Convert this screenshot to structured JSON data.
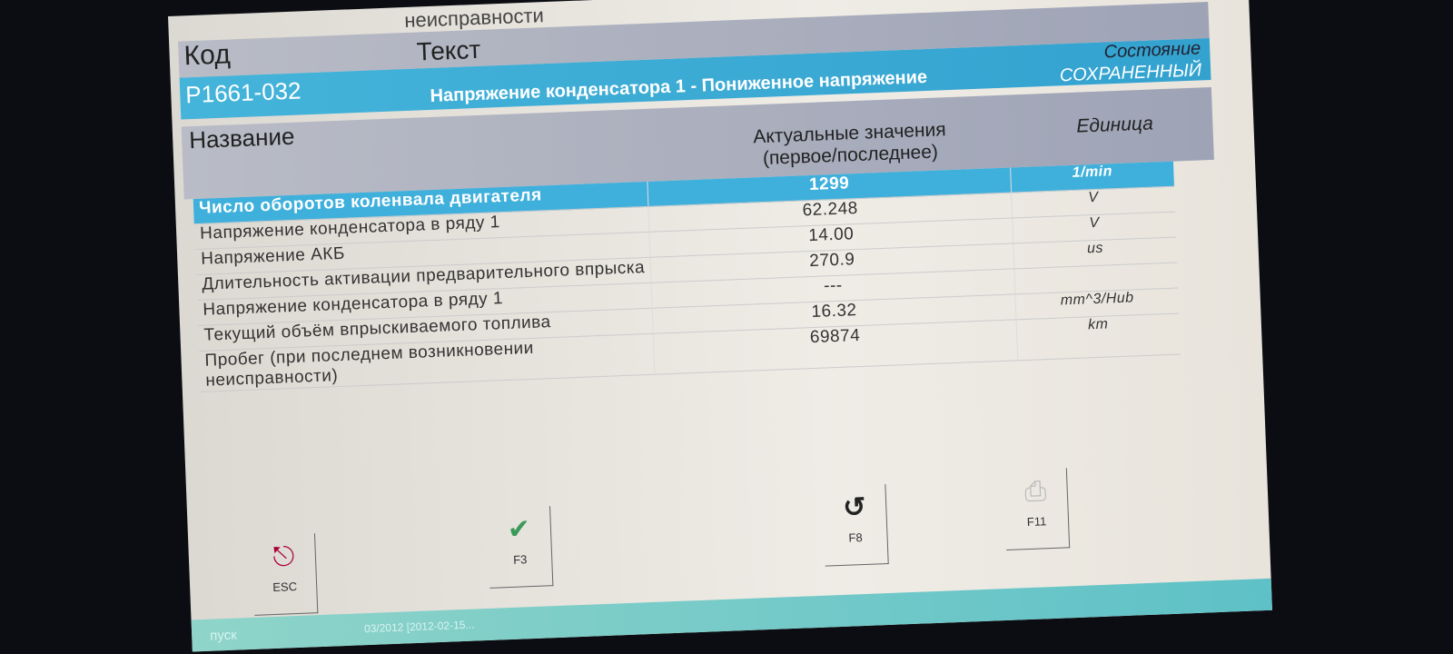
{
  "window_title": "неисправности",
  "header": {
    "code_label": "Код",
    "text_label": "Текст"
  },
  "fault": {
    "code": "P1661-032",
    "text": "Напряжение конденсатора 1 - Пониженное напряжение",
    "status_label": "Состояние",
    "status_value": "СОХРАНЕННЫЙ"
  },
  "table": {
    "columns": [
      "Название",
      "Актуальные значения (первое/последнее)",
      "Единица"
    ],
    "rows": [
      {
        "name": "Число оборотов коленвала двигателя",
        "value": "1299",
        "unit": "1/min"
      },
      {
        "name": "Напряжение конденсатора в ряду 1",
        "value": "62.248",
        "unit": "V"
      },
      {
        "name": "Напряжение АКБ",
        "value": "14.00",
        "unit": "V"
      },
      {
        "name": "Длительность активации предварительного впрыска",
        "value": "270.9",
        "unit": "us"
      },
      {
        "name": "Напряжение конденсатора в ряду 1",
        "value": "---",
        "unit": ""
      },
      {
        "name": "Текущий объём впрыскиваемого топлива",
        "value": "16.32",
        "unit": "mm^3/Hub"
      },
      {
        "name": "Пробег (при последнем возникновении неисправности)",
        "value": "69874",
        "unit": "km"
      }
    ]
  },
  "function_keys": [
    {
      "key": "ESC",
      "icon": "exit-door-icon"
    },
    {
      "key": "F3",
      "icon": "checkmark-icon"
    },
    {
      "key": "F8",
      "icon": "undo-arrow-icon"
    },
    {
      "key": "F11",
      "icon": "printer-icon"
    }
  ],
  "taskbar": {
    "start": "пуск",
    "item": "03/2012 [2012-02-15..."
  }
}
